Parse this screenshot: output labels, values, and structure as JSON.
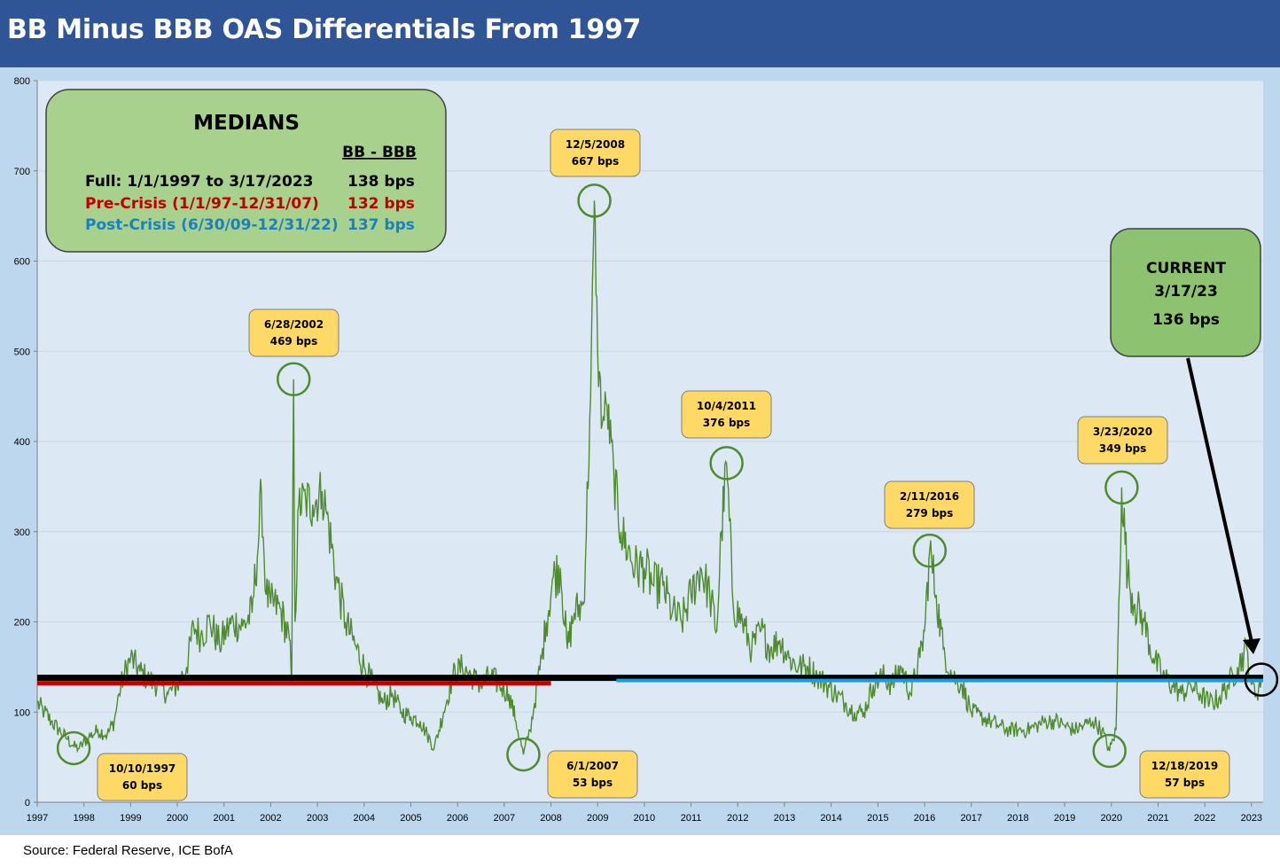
{
  "title": "BB Minus BBB OAS Differentials From 1997",
  "source": "Source: Federal Reserve, ICE BofA",
  "colors": {
    "title_bar": "#2f5597",
    "plot_bg": "#dde8f5",
    "outer_bg": "#bdd7ee",
    "series": "#4f8b2e",
    "full_line": "#000000",
    "pre_crisis": "#c00000",
    "post_crisis": "#1c9be0",
    "callout_fill": "#ffd966",
    "medians_fill": "#a9d18e",
    "current_fill": "#8cc270"
  },
  "medians": {
    "heading": "MEDIANS",
    "column_header": "BB - BBB",
    "rows": [
      {
        "label": "Full: 1/1/1997 to 3/17/2023",
        "value": "138 bps",
        "color": "#000000"
      },
      {
        "label": "Pre-Crisis (1/1/97-12/31/07)",
        "value": "132 bps",
        "color": "#c00000"
      },
      {
        "label": "Post-Crisis (6/30/09-12/31/22)",
        "value": "137 bps",
        "color": "#1c7fc0"
      }
    ]
  },
  "current": {
    "line1": "CURRENT",
    "line2": "3/17/23",
    "line3": "136 bps"
  },
  "chart_data": {
    "type": "line",
    "title": "BB Minus BBB OAS Differentials From 1997",
    "ylim": [
      0,
      800
    ],
    "xlim": [
      1997.0,
      2023.25
    ],
    "yticks": [
      "0",
      "100",
      "200",
      "300",
      "400",
      "500",
      "600",
      "700",
      "800"
    ],
    "xticks": [
      "1997",
      "1998",
      "1999",
      "2000",
      "2001",
      "2002",
      "2003",
      "2004",
      "2005",
      "2006",
      "2007",
      "2008",
      "2009",
      "2010",
      "2011",
      "2012",
      "2013",
      "2014",
      "2015",
      "2016",
      "2017",
      "2018",
      "2019",
      "2020",
      "2021",
      "2022",
      "2023"
    ],
    "grid": true,
    "series": [
      {
        "values_desc": "BB-BBB OAS spread (bps), approximate weekly path",
        "x": [
          1997.0,
          1997.15,
          1997.3,
          1997.5,
          1997.65,
          1997.78,
          1997.9,
          1998.1,
          1998.3,
          1998.5,
          1998.65,
          1998.75,
          1998.85,
          1999.0,
          1999.2,
          1999.4,
          1999.6,
          1999.8,
          2000.0,
          2000.2,
          2000.35,
          2000.5,
          2000.7,
          2000.9,
          2001.05,
          2001.2,
          2001.4,
          2001.6,
          2001.75,
          2001.8,
          2001.9,
          2002.0,
          2002.2,
          2002.4,
          2002.45,
          2002.49,
          2002.52,
          2002.6,
          2002.75,
          2002.9,
          2003.1,
          2003.2,
          2003.4,
          2003.6,
          2003.8,
          2004.0,
          2004.2,
          2004.4,
          2004.6,
          2004.8,
          2005.0,
          2005.2,
          2005.35,
          2005.5,
          2005.7,
          2005.9,
          2006.1,
          2006.3,
          2006.5,
          2006.7,
          2006.9,
          2007.1,
          2007.25,
          2007.41,
          2007.55,
          2007.65,
          2007.8,
          2007.9,
          2008.05,
          2008.2,
          2008.35,
          2008.5,
          2008.7,
          2008.85,
          2008.93,
          2009.0,
          2009.1,
          2009.2,
          2009.35,
          2009.5,
          2009.65,
          2009.8,
          2010.0,
          2010.2,
          2010.4,
          2010.6,
          2010.8,
          2011.0,
          2011.2,
          2011.4,
          2011.55,
          2011.65,
          2011.76,
          2011.9,
          2012.1,
          2012.3,
          2012.5,
          2012.7,
          2012.9,
          2013.1,
          2013.3,
          2013.5,
          2013.7,
          2013.9,
          2014.1,
          2014.3,
          2014.5,
          2014.7,
          2014.9,
          2015.1,
          2015.3,
          2015.5,
          2015.7,
          2015.9,
          2016.0,
          2016.11,
          2016.25,
          2016.4,
          2016.6,
          2016.8,
          2017.0,
          2017.2,
          2017.4,
          2017.6,
          2017.8,
          2018.0,
          2018.2,
          2018.4,
          2018.6,
          2018.8,
          2019.0,
          2019.2,
          2019.4,
          2019.6,
          2019.8,
          2019.96,
          2020.1,
          2020.22,
          2020.35,
          2020.5,
          2020.7,
          2020.9,
          2021.1,
          2021.3,
          2021.5,
          2021.7,
          2021.9,
          2022.1,
          2022.3,
          2022.5,
          2022.7,
          2022.9,
          2023.0,
          2023.1,
          2023.21
        ],
        "y": [
          110,
          100,
          90,
          78,
          70,
          62,
          60,
          72,
          80,
          75,
          90,
          120,
          140,
          160,
          145,
          135,
          130,
          120,
          130,
          150,
          195,
          185,
          200,
          175,
          190,
          200,
          195,
          210,
          300,
          345,
          230,
          220,
          215,
          180,
          130,
          469,
          200,
          330,
          335,
          330,
          345,
          320,
          250,
          200,
          175,
          150,
          130,
          110,
          120,
          100,
          95,
          90,
          75,
          60,
          100,
          140,
          150,
          140,
          130,
          140,
          130,
          120,
          90,
          53,
          80,
          110,
          160,
          200,
          250,
          260,
          170,
          210,
          220,
          450,
          667,
          500,
          420,
          440,
          360,
          300,
          280,
          260,
          260,
          240,
          240,
          210,
          200,
          230,
          260,
          230,
          190,
          300,
          376,
          220,
          200,
          170,
          190,
          170,
          180,
          160,
          150,
          150,
          140,
          130,
          120,
          110,
          100,
          100,
          130,
          140,
          130,
          150,
          120,
          160,
          190,
          279,
          230,
          170,
          140,
          130,
          100,
          95,
          90,
          85,
          80,
          80,
          80,
          85,
          90,
          90,
          85,
          80,
          85,
          90,
          80,
          57,
          80,
          349,
          250,
          220,
          200,
          160,
          140,
          130,
          120,
          130,
          120,
          110,
          115,
          130,
          150,
          170,
          130,
          120,
          136
        ]
      }
    ],
    "median_lines": [
      {
        "name": "Full: 1/1/1997 to 3/17/2023",
        "value": 138,
        "x_start": 1997.0,
        "x_end": 2023.25
      },
      {
        "name": "Pre-Crisis (1/1/97-12/31/07)",
        "value": 132,
        "x_start": 1997.0,
        "x_end": 2008.0
      },
      {
        "name": "Post-Crisis (6/30/09-12/31/22)",
        "value": 137,
        "x_start": 2009.4,
        "x_end": 2023.25
      }
    ],
    "annotations": [
      {
        "date": "10/10/1997",
        "text": "60 bps",
        "x": 1997.78,
        "y": 60
      },
      {
        "date": "6/28/2002",
        "text": "469 bps",
        "x": 2002.49,
        "y": 469
      },
      {
        "date": "6/1/2007",
        "text": "53 bps",
        "x": 2007.41,
        "y": 53
      },
      {
        "date": "12/5/2008",
        "text": "667 bps",
        "x": 2008.93,
        "y": 667
      },
      {
        "date": "10/4/2011",
        "text": "376 bps",
        "x": 2011.76,
        "y": 376
      },
      {
        "date": "2/11/2016",
        "text": "279 bps",
        "x": 2016.11,
        "y": 279
      },
      {
        "date": "3/23/2020",
        "text": "349 bps",
        "x": 2020.22,
        "y": 349
      },
      {
        "date": "12/18/2019",
        "text": "57 bps",
        "x": 2019.96,
        "y": 57
      },
      {
        "date": "3/17/23",
        "text": "136 bps",
        "x": 2023.21,
        "y": 136
      }
    ]
  }
}
